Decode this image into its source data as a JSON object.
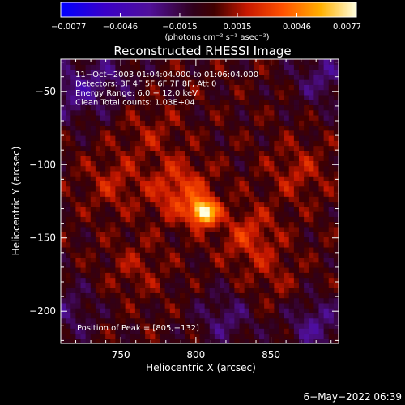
{
  "chart_data": {
    "type": "heatmap",
    "title": "Reconstructed RHESSI Image",
    "xlabel": "Heliocentric X (arcsec)",
    "ylabel": "Heliocentric Y (arcsec)",
    "xlim": [
      710,
      895
    ],
    "ylim": [
      -222,
      -28
    ],
    "x_ticks": [
      {
        "value": 750,
        "label": "750"
      },
      {
        "value": 800,
        "label": "800"
      },
      {
        "value": 850,
        "label": "850"
      }
    ],
    "y_ticks": [
      {
        "value": -50,
        "label": "−50"
      },
      {
        "value": -100,
        "label": "−100"
      },
      {
        "value": -150,
        "label": "−150"
      },
      {
        "value": -200,
        "label": "−200"
      }
    ],
    "colorbar": {
      "min": -0.0077,
      "max": 0.0077,
      "tick_labels": [
        "−0.0077",
        "−0.0046",
        "−0.0015",
        "0.0015",
        "0.0046",
        "0.0077"
      ],
      "unit_label": "(photons cm⁻² s⁻¹ asec⁻²)"
    },
    "annotations": [
      "11−Oct−2003 01:04:04.000 to 01:06:04.000",
      "Detectors: 3F 4F 5F 6F 7F 8F, Att 0",
      "Energy Range: 6.0 − 12.0 keV",
      "Clean     Total counts: 1.03E+04"
    ],
    "peak_label": "Position of Peak = [805,−132]",
    "peak": {
      "x": 805,
      "y": -132,
      "value": 0.0077
    },
    "secondary_sources": [
      {
        "x": 790,
        "y": -118,
        "value": 0.003
      },
      {
        "x": 835,
        "y": -148,
        "value": 0.0022
      },
      {
        "x": 745,
        "y": -112,
        "value": 0.0016
      },
      {
        "x": 868,
        "y": -105,
        "value": 0.0016
      },
      {
        "x": 760,
        "y": -170,
        "value": 0.0012
      },
      {
        "x": 850,
        "y": -178,
        "value": 0.001
      },
      {
        "x": 770,
        "y": -78,
        "value": 0.0012
      }
    ],
    "negative_regions": [
      {
        "x": 720,
        "y": -50,
        "value": -0.0025
      },
      {
        "x": 885,
        "y": -40,
        "value": -0.0022
      },
      {
        "x": 880,
        "y": -210,
        "value": -0.0025
      },
      {
        "x": 820,
        "y": -205,
        "value": -0.002
      },
      {
        "x": 715,
        "y": -200,
        "value": -0.0018
      },
      {
        "x": 745,
        "y": -40,
        "value": -0.0015
      }
    ]
  },
  "footer": {
    "timestamp": "6−May−2022 06:39"
  }
}
